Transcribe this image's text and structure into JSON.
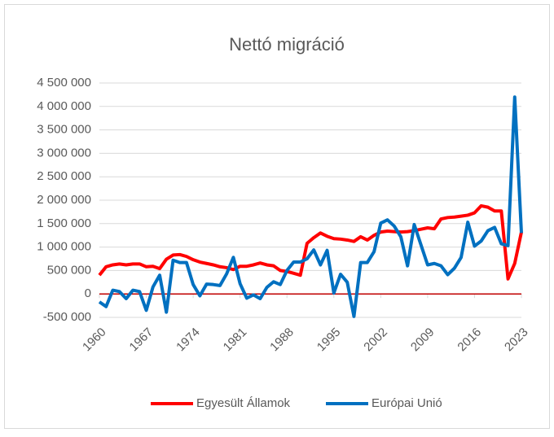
{
  "chart_data": {
    "type": "line",
    "title": "Nettó migráció",
    "x": [
      1960,
      1961,
      1962,
      1963,
      1964,
      1965,
      1966,
      1967,
      1968,
      1969,
      1970,
      1971,
      1972,
      1973,
      1974,
      1975,
      1976,
      1977,
      1978,
      1979,
      1980,
      1981,
      1982,
      1983,
      1984,
      1985,
      1986,
      1987,
      1988,
      1989,
      1990,
      1991,
      1992,
      1993,
      1994,
      1995,
      1996,
      1997,
      1998,
      1999,
      2000,
      2001,
      2002,
      2003,
      2004,
      2005,
      2006,
      2007,
      2008,
      2009,
      2010,
      2011,
      2012,
      2013,
      2014,
      2015,
      2016,
      2017,
      2018,
      2019,
      2020,
      2021,
      2022,
      2023
    ],
    "series": [
      {
        "name": "Egyesült Államok",
        "color": "#ff0000",
        "values": [
          400000,
          580000,
          620000,
          640000,
          620000,
          640000,
          640000,
          580000,
          590000,
          540000,
          740000,
          830000,
          840000,
          800000,
          730000,
          680000,
          650000,
          620000,
          580000,
          560000,
          520000,
          590000,
          590000,
          620000,
          660000,
          620000,
          600000,
          500000,
          480000,
          440000,
          400000,
          1080000,
          1200000,
          1300000,
          1230000,
          1180000,
          1170000,
          1150000,
          1120000,
          1220000,
          1150000,
          1250000,
          1320000,
          1340000,
          1330000,
          1320000,
          1330000,
          1350000,
          1380000,
          1410000,
          1390000,
          1600000,
          1630000,
          1640000,
          1660000,
          1680000,
          1730000,
          1880000,
          1850000,
          1770000,
          1770000,
          320000,
          650000,
          1320000
        ]
      },
      {
        "name": "Európai Unió",
        "color": "#0070c0",
        "values": [
          -170000,
          -270000,
          80000,
          50000,
          -100000,
          80000,
          50000,
          -350000,
          150000,
          400000,
          -390000,
          720000,
          670000,
          670000,
          200000,
          -40000,
          210000,
          200000,
          180000,
          430000,
          780000,
          220000,
          -90000,
          -20000,
          -100000,
          140000,
          260000,
          200000,
          500000,
          680000,
          680000,
          750000,
          940000,
          620000,
          930000,
          20000,
          420000,
          250000,
          -480000,
          670000,
          670000,
          900000,
          1510000,
          1580000,
          1450000,
          1220000,
          600000,
          1480000,
          1050000,
          620000,
          650000,
          600000,
          410000,
          550000,
          780000,
          1530000,
          1020000,
          1130000,
          1350000,
          1420000,
          1070000,
          1030000,
          4200000,
          1300000
        ]
      }
    ],
    "xlim": [
      1960,
      2023
    ],
    "xticks": [
      1960,
      1967,
      1974,
      1981,
      1988,
      1995,
      2002,
      2009,
      2016,
      2023
    ],
    "ylim": [
      -500000,
      4500000
    ],
    "yticks": [
      {
        "value": -500000,
        "label": "-500 000"
      },
      0,
      {
        "value": 500000,
        "label": "500 000"
      },
      {
        "value": 1000000,
        "label": "1 000 000"
      },
      {
        "value": 1500000,
        "label": "1 500 000"
      },
      {
        "value": 2000000,
        "label": "2 000 000"
      },
      {
        "value": 2500000,
        "label": "2 500 000"
      },
      {
        "value": 3000000,
        "label": "3 000 000"
      },
      {
        "value": 3500000,
        "label": "3 500 000"
      },
      {
        "value": 4000000,
        "label": "4 000 000"
      },
      {
        "value": 4500000,
        "label": "4 500 000"
      }
    ],
    "grid": true,
    "legend": "bottom",
    "zero_line_color": "#c00000"
  }
}
